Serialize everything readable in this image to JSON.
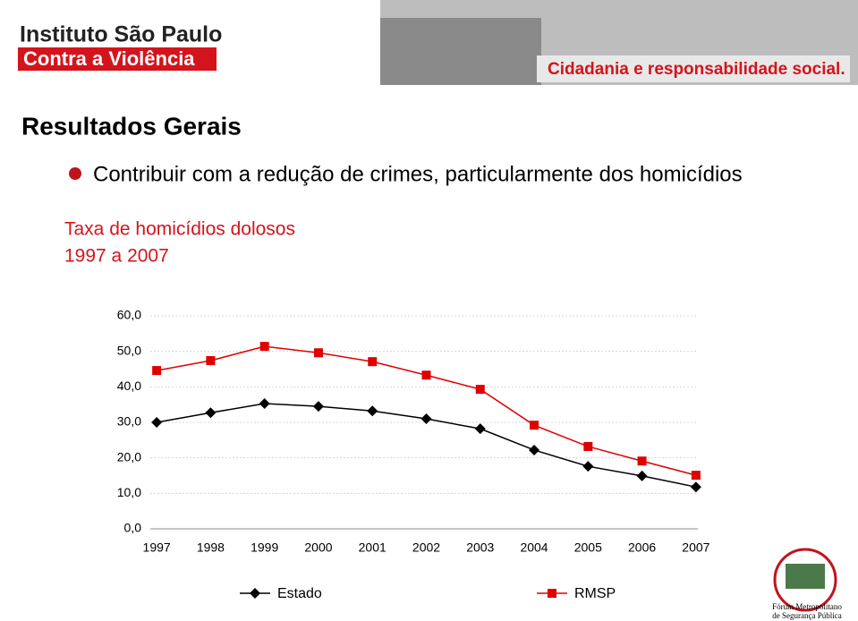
{
  "header": {
    "logo_line1": "Instituto São Paulo",
    "logo_line2": "Contra a Violência",
    "tagline": "Cidadania e responsabilidade social."
  },
  "slide": {
    "title": "Resultados Gerais",
    "bullet": "Contribuir com a redução de crimes, particularmente dos homicídios",
    "subtitle_line1": "Taxa de homicídios dolosos",
    "subtitle_line2": "1997 a 2007"
  },
  "footer": {
    "logo_line1": "Fórum Metropolitano",
    "logo_line2": "de Segurança Pública"
  },
  "chart_data": {
    "type": "line",
    "categories": [
      "1997",
      "1998",
      "1999",
      "2000",
      "2001",
      "2002",
      "2003",
      "2004",
      "2005",
      "2006",
      "2007"
    ],
    "series": [
      {
        "name": "Estado",
        "color": "#000000",
        "marker": "diamond",
        "values": [
          30.0,
          32.7,
          35.3,
          34.5,
          33.2,
          31.0,
          28.2,
          22.2,
          17.6,
          14.9,
          11.8
        ]
      },
      {
        "name": "RMSP",
        "color": "#e00000",
        "marker": "square",
        "values": [
          44.6,
          47.4,
          51.4,
          49.6,
          47.1,
          43.3,
          39.3,
          29.2,
          23.2,
          19.1,
          15.1
        ]
      }
    ],
    "ylim": [
      0,
      60
    ],
    "yticks": [
      {
        "value": 0,
        "label": "0,0"
      },
      {
        "value": 10,
        "label": "10,0"
      },
      {
        "value": 20,
        "label": "20,0"
      },
      {
        "value": 30,
        "label": "30,0"
      },
      {
        "value": 40,
        "label": "40,0"
      },
      {
        "value": 50,
        "label": "50,0"
      },
      {
        "value": 60,
        "label": "60,0"
      }
    ],
    "grid": true,
    "legend": "bottom"
  }
}
